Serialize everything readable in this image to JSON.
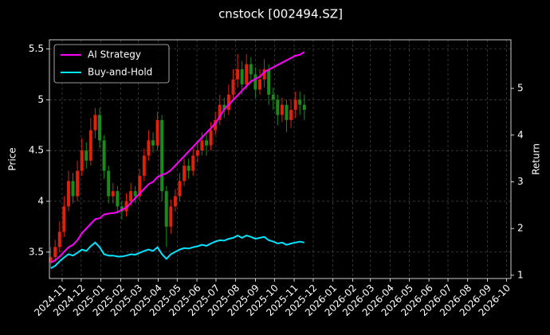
{
  "chart_data": {
    "type": "candlestick",
    "title": "cnstock [002494.SZ]",
    "ylabel": "Price",
    "y2label": "Return",
    "x": [
      "2024-10-14",
      "2024-10-21",
      "2024-10-28",
      "2024-11-04",
      "2024-11-11",
      "2024-11-18",
      "2024-11-25",
      "2024-12-02",
      "2024-12-09",
      "2024-12-16",
      "2024-12-23",
      "2024-12-30",
      "2025-01-06",
      "2025-01-13",
      "2025-01-20",
      "2025-01-27",
      "2025-02-03",
      "2025-02-10",
      "2025-02-17",
      "2025-02-24",
      "2025-03-03",
      "2025-03-10",
      "2025-03-17",
      "2025-03-24",
      "2025-03-31",
      "2025-04-07",
      "2025-04-14",
      "2025-04-21",
      "2025-04-28",
      "2025-05-05",
      "2025-05-12",
      "2025-05-19",
      "2025-05-26",
      "2025-06-02",
      "2025-06-09",
      "2025-06-16",
      "2025-06-23",
      "2025-06-30",
      "2025-07-07",
      "2025-07-14",
      "2025-07-21",
      "2025-07-28",
      "2025-08-04",
      "2025-08-11",
      "2025-08-18",
      "2025-08-25",
      "2025-09-01",
      "2025-09-08",
      "2025-09-15",
      "2025-09-22",
      "2025-09-29",
      "2025-10-06",
      "2025-10-13",
      "2025-10-20",
      "2025-10-27",
      "2025-11-03",
      "2025-11-10",
      "2025-11-17"
    ],
    "open": [
      3.4,
      3.45,
      3.55,
      3.7,
      3.95,
      4.2,
      4.05,
      4.3,
      4.5,
      4.4,
      4.7,
      4.85,
      4.6,
      4.3,
      4.05,
      4.1,
      3.95,
      3.9,
      4.0,
      4.1,
      4.05,
      4.25,
      4.45,
      4.6,
      4.55,
      4.8,
      4.1,
      3.75,
      3.95,
      4.05,
      4.2,
      4.35,
      4.3,
      4.45,
      4.5,
      4.6,
      4.55,
      4.7,
      4.8,
      4.95,
      4.9,
      5.05,
      5.2,
      5.3,
      5.15,
      5.35,
      5.25,
      5.1,
      5.2,
      5.3,
      5.05,
      5.0,
      4.85,
      4.95,
      4.8,
      4.9,
      5.0,
      4.95
    ],
    "high": [
      3.55,
      3.62,
      3.8,
      4.05,
      4.3,
      4.28,
      4.4,
      4.62,
      4.58,
      4.82,
      4.92,
      4.92,
      4.65,
      4.35,
      4.18,
      4.15,
      4.0,
      4.08,
      4.18,
      4.15,
      4.32,
      4.52,
      4.7,
      4.68,
      4.88,
      4.85,
      4.15,
      4.02,
      4.12,
      4.28,
      4.42,
      4.42,
      4.52,
      4.58,
      4.68,
      4.66,
      4.78,
      4.88,
      5.05,
      5.02,
      5.15,
      5.3,
      5.45,
      5.38,
      5.45,
      5.42,
      5.32,
      5.3,
      5.4,
      5.35,
      5.12,
      5.05,
      5.02,
      5.0,
      5.0,
      5.08,
      5.08,
      5.05
    ],
    "low": [
      3.35,
      3.4,
      3.5,
      3.65,
      3.9,
      3.98,
      4.0,
      4.25,
      4.32,
      4.35,
      4.62,
      4.52,
      4.22,
      3.98,
      3.98,
      3.88,
      3.82,
      3.85,
      3.95,
      3.98,
      4.0,
      4.2,
      4.4,
      4.48,
      4.5,
      4.0,
      3.55,
      3.68,
      3.9,
      4.0,
      4.15,
      4.22,
      4.25,
      4.38,
      4.45,
      4.45,
      4.5,
      4.65,
      4.75,
      4.82,
      4.85,
      5.0,
      5.12,
      5.05,
      5.1,
      5.15,
      5.02,
      5.05,
      5.12,
      4.95,
      4.9,
      4.75,
      4.78,
      4.68,
      4.72,
      4.82,
      4.85,
      4.8
    ],
    "close": [
      3.45,
      3.55,
      3.7,
      3.95,
      4.2,
      4.05,
      4.3,
      4.5,
      4.4,
      4.7,
      4.85,
      4.6,
      4.3,
      4.05,
      4.1,
      3.95,
      3.9,
      4.0,
      4.1,
      4.05,
      4.25,
      4.45,
      4.6,
      4.55,
      4.8,
      4.1,
      3.75,
      3.95,
      4.05,
      4.2,
      4.35,
      4.3,
      4.45,
      4.5,
      4.6,
      4.55,
      4.7,
      4.8,
      4.95,
      4.9,
      5.05,
      5.2,
      5.3,
      5.15,
      5.35,
      5.25,
      5.1,
      5.2,
      5.3,
      5.05,
      5.0,
      4.85,
      4.95,
      4.8,
      4.9,
      5.0,
      4.95,
      4.9
    ],
    "up_color": "#e0200a",
    "down_color": "#1a8a1a",
    "series": [
      {
        "name": "AI Strategy",
        "color": "#ff00ff",
        "axis": "y2",
        "values": [
          1.27,
          1.32,
          1.4,
          1.5,
          1.6,
          1.65,
          1.75,
          1.9,
          2.0,
          2.1,
          2.2,
          2.22,
          2.3,
          2.32,
          2.33,
          2.35,
          2.4,
          2.45,
          2.55,
          2.65,
          2.75,
          2.85,
          2.95,
          3.0,
          3.1,
          3.15,
          3.18,
          3.25,
          3.35,
          3.45,
          3.55,
          3.65,
          3.75,
          3.85,
          3.95,
          4.05,
          4.15,
          4.25,
          4.4,
          4.55,
          4.65,
          4.75,
          4.85,
          4.95,
          5.05,
          5.15,
          5.2,
          5.25,
          5.35,
          5.4,
          5.45,
          5.5,
          5.55,
          5.6,
          5.65,
          5.7,
          5.72,
          5.78
        ]
      },
      {
        "name": "Buy-and-Hold",
        "color": "#00e5ff",
        "axis": "y2",
        "values": [
          1.15,
          1.2,
          1.3,
          1.38,
          1.45,
          1.42,
          1.48,
          1.55,
          1.52,
          1.62,
          1.7,
          1.6,
          1.45,
          1.42,
          1.42,
          1.4,
          1.4,
          1.42,
          1.45,
          1.44,
          1.48,
          1.52,
          1.55,
          1.52,
          1.6,
          1.45,
          1.35,
          1.45,
          1.5,
          1.55,
          1.58,
          1.57,
          1.6,
          1.62,
          1.65,
          1.63,
          1.68,
          1.72,
          1.75,
          1.74,
          1.78,
          1.8,
          1.85,
          1.8,
          1.85,
          1.82,
          1.78,
          1.8,
          1.82,
          1.75,
          1.72,
          1.68,
          1.7,
          1.65,
          1.68,
          1.7,
          1.72,
          1.7
        ]
      }
    ],
    "xlim": [
      "2024-10-12",
      "2026-10-08"
    ],
    "xticks": [
      "2024-11",
      "2024-12",
      "2025-01",
      "2025-02",
      "2025-03",
      "2025-04",
      "2025-05",
      "2025-06",
      "2025-07",
      "2025-08",
      "2025-09",
      "2025-10",
      "2025-11",
      "2025-12",
      "2026-01",
      "2026-02",
      "2026-03",
      "2026-04",
      "2026-05",
      "2026-06",
      "2026-07",
      "2026-08",
      "2026-09",
      "2026-10"
    ],
    "ylim": [
      3.24,
      5.59
    ],
    "yticks": [
      3.5,
      4.0,
      4.5,
      5.0,
      5.5
    ],
    "y2lim": [
      0.93,
      6.04
    ],
    "y2ticks": [
      1,
      2,
      3,
      4,
      5
    ],
    "grid": true,
    "legend": "upper left"
  }
}
